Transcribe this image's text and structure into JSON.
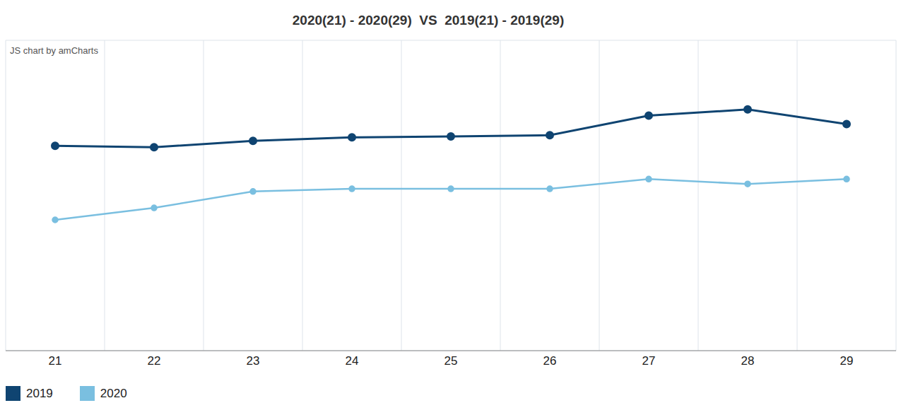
{
  "chart_data": {
    "type": "line",
    "title": "2020(21) - 2020(29)  VS  2019(21) - 2019(29)",
    "annotations": [
      "JS chart by amCharts"
    ],
    "categories": [
      "21",
      "22",
      "23",
      "24",
      "25",
      "26",
      "27",
      "28",
      "29"
    ],
    "series": [
      {
        "name": "2019",
        "color": "#0f4471",
        "marker": "circle",
        "values": [
          4.62,
          4.59,
          4.73,
          4.81,
          4.83,
          4.86,
          5.3,
          5.44,
          5.11
        ]
      },
      {
        "name": "2020",
        "color": "#7abfe0",
        "marker": "circle",
        "values": [
          2.95,
          3.22,
          3.59,
          3.65,
          3.65,
          3.65,
          3.87,
          3.76,
          3.87
        ]
      }
    ],
    "ylim": [
      0,
      7
    ],
    "yticks": [
      0,
      1,
      2,
      3,
      4,
      5,
      6,
      7
    ],
    "grid": true,
    "legend": "bottom-left",
    "tick_labels": "x"
  }
}
